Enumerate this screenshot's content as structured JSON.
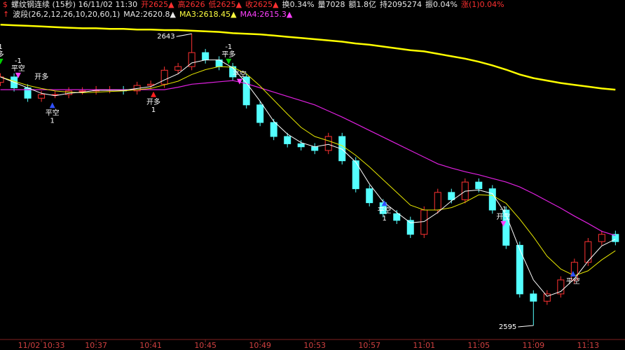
{
  "header": {
    "row1": [
      {
        "text": "$",
        "color": "#ff3030"
      },
      {
        "text": "螺纹钢连续 (15秒) 16/11/02 11:30",
        "color": "#e8e8e8"
      },
      {
        "text": "开2625▲",
        "color": "#ff3030"
      },
      {
        "text": "高2626",
        "color": "#ff3030"
      },
      {
        "text": "低2625▲",
        "color": "#ff3030"
      },
      {
        "text": "收2625▲",
        "color": "#ff3030"
      },
      {
        "text": "换0.34%",
        "color": "#e8e8e8"
      },
      {
        "text": "量7028",
        "color": "#e8e8e8"
      },
      {
        "text": "额1.8亿",
        "color": "#e8e8e8"
      },
      {
        "text": "持2095274",
        "color": "#e8e8e8"
      },
      {
        "text": "振0.04%",
        "color": "#e8e8e8"
      },
      {
        "text": "涨(1)0.04%",
        "color": "#ff3030"
      }
    ],
    "row2": [
      {
        "text": "↑",
        "color": "#ff3030"
      },
      {
        "text": "波段(26,2,12,26,10,20,60,1)",
        "color": "#e8e8e8"
      },
      {
        "text": "MA2:2620.8▲",
        "color": "#e8e8e8"
      },
      {
        "text": "MA3:2618.45▲",
        "color": "#ffff40"
      },
      {
        "text": "MA4:2615.3▲",
        "color": "#ff40ff"
      }
    ]
  },
  "chart_data": {
    "type": "candlestick",
    "up_color": "#ff3232",
    "down_color": "#54ffff",
    "xlim": [
      -3.03,
      42.7
    ],
    "ylim": [
      2592.7,
      2645.1
    ],
    "xticks": [
      {
        "value": 0,
        "label": "11/02 10:33"
      },
      {
        "value": 4,
        "label": "10:37"
      },
      {
        "value": 8,
        "label": "10:41"
      },
      {
        "value": 12,
        "label": "10:45"
      },
      {
        "value": 16,
        "label": "10:49"
      },
      {
        "value": 20,
        "label": "10:53"
      },
      {
        "value": 24,
        "label": "10:57"
      },
      {
        "value": 28,
        "label": "11:01"
      },
      {
        "value": 32,
        "label": "11:05"
      },
      {
        "value": 36,
        "label": "11:09"
      },
      {
        "value": 40,
        "label": "11:13"
      }
    ],
    "x": [
      -3,
      -2,
      -1,
      0,
      1,
      2,
      3,
      4,
      5,
      6,
      7,
      8,
      9,
      10,
      11,
      12,
      13,
      14,
      15,
      16,
      17,
      18,
      19,
      20,
      21,
      22,
      23,
      24,
      25,
      26,
      27,
      28,
      29,
      30,
      31,
      32,
      33,
      34,
      35,
      36,
      37,
      38,
      39,
      40,
      41,
      42
    ],
    "open": [
      2635,
      2635.9,
      2634.1,
      2632.4,
      2633,
      2633,
      2633.6,
      2633.6,
      2633.8,
      2633.8,
      2633.6,
      2634.5,
      2634.7,
      2637,
      2637.6,
      2639.9,
      2638.7,
      2637.6,
      2635.9,
      2631.3,
      2628.4,
      2626.1,
      2624.9,
      2624.4,
      2623.8,
      2626.1,
      2622.1,
      2617.5,
      2615.2,
      2613.4,
      2612.3,
      2610,
      2614,
      2616.9,
      2615.7,
      2618.6,
      2617.5,
      2614,
      2608.2,
      2600.2,
      2599,
      2600.2,
      2602.5,
      2605.4,
      2608.8,
      2610
    ],
    "high": [
      2636.5,
      2636.5,
      2634.7,
      2633.6,
      2633.6,
      2634.2,
      2634.2,
      2634.4,
      2634.4,
      2634.4,
      2635.1,
      2635.3,
      2637.6,
      2638.2,
      2643,
      2640.5,
      2639.3,
      2638.2,
      2636.5,
      2631.9,
      2629,
      2626.7,
      2625.5,
      2625,
      2626.7,
      2626.7,
      2622.7,
      2618.1,
      2615.8,
      2614,
      2612.9,
      2614.6,
      2617.5,
      2617.5,
      2619.2,
      2619.2,
      2618.1,
      2614.6,
      2608.8,
      2600.8,
      2600.8,
      2603.1,
      2606,
      2609.4,
      2610.6,
      2610.6
    ],
    "low": [
      2634.4,
      2633.5,
      2631.8,
      2631.8,
      2632.4,
      2632.4,
      2633,
      2633,
      2633.2,
      2633,
      2633,
      2633.9,
      2634.1,
      2636.4,
      2637,
      2638.1,
      2637,
      2635.3,
      2630.7,
      2627.8,
      2625.5,
      2624.3,
      2623.8,
      2623.2,
      2623.2,
      2621.5,
      2616.9,
      2614.6,
      2612.8,
      2611.7,
      2609.4,
      2609.4,
      2613.4,
      2615.1,
      2615.1,
      2616.9,
      2613.4,
      2607.6,
      2599.6,
      2595,
      2598.4,
      2599.6,
      2601.9,
      2604.8,
      2608.2,
      2608.2
    ],
    "close": [
      2635.9,
      2634.1,
      2632.4,
      2633,
      2633,
      2633.6,
      2633.6,
      2633.8,
      2633.8,
      2633.6,
      2634.5,
      2634.7,
      2637,
      2637.6,
      2639.9,
      2638.7,
      2637.6,
      2635.9,
      2631.3,
      2628.4,
      2626.1,
      2624.9,
      2624.4,
      2623.8,
      2626.1,
      2622.1,
      2617.5,
      2615.2,
      2613.4,
      2612.3,
      2610,
      2614,
      2616.9,
      2615.7,
      2618.6,
      2617.5,
      2614,
      2608.2,
      2600.2,
      2599,
      2600.2,
      2602.5,
      2605.4,
      2608.8,
      2610,
      2608.8
    ],
    "lines": [
      {
        "color": "#ffff00",
        "width": 2.5,
        "values": [
          2644.5,
          2644.4,
          2644.3,
          2644.2,
          2644.1,
          2644,
          2643.9,
          2643.9,
          2643.8,
          2643.8,
          2643.7,
          2643.7,
          2643.6,
          2643.6,
          2643.5,
          2643.4,
          2643.3,
          2643.1,
          2643,
          2642.9,
          2642.7,
          2642.5,
          2642.3,
          2642.1,
          2641.9,
          2641.7,
          2641.4,
          2641.2,
          2640.9,
          2640.6,
          2640.3,
          2640.1,
          2639.7,
          2639.3,
          2638.9,
          2638.4,
          2637.8,
          2637.1,
          2636.3,
          2635.7,
          2635.3,
          2634.9,
          2634.6,
          2634.3,
          2634,
          2633.8
        ]
      },
      {
        "color": "#e020e0",
        "width": 1.2,
        "values": [
          2633.8,
          2633.8,
          2633.8,
          2633.8,
          2633.8,
          2633.8,
          2633.8,
          2633.8,
          2633.8,
          2633.8,
          2633.8,
          2633.8,
          2633.8,
          2634.2,
          2634.7,
          2634.9,
          2635.1,
          2635.3,
          2634.8,
          2634.1,
          2633.4,
          2632.7,
          2632,
          2631.3,
          2630.3,
          2629.3,
          2628.2,
          2627.1,
          2626,
          2624.9,
          2623.8,
          2622.7,
          2621.6,
          2620.9,
          2620.3,
          2619.8,
          2619.2,
          2618.6,
          2617.8,
          2616.7,
          2615.5,
          2614.3,
          2613,
          2611.8,
          2610.5,
          2609.8
        ]
      },
      {
        "color": "#e8e800",
        "width": 1,
        "values": [
          2635.9,
          2635.2,
          2634.5,
          2634,
          2633.6,
          2633.4,
          2633.3,
          2633.4,
          2633.5,
          2633.6,
          2633.8,
          2634,
          2634.6,
          2635.2,
          2636.3,
          2637.1,
          2637.6,
          2637.5,
          2636.4,
          2634.4,
          2632.1,
          2629.8,
          2627.6,
          2626.1,
          2625.4,
          2624.6,
          2623,
          2621.1,
          2619,
          2616.9,
          2614.8,
          2614,
          2614,
          2614.4,
          2615.3,
          2616.5,
          2616.4,
          2615.1,
          2612.5,
          2609.6,
          2606.4,
          2604.3,
          2603.2,
          2604,
          2605.8,
          2607.3
        ]
      },
      {
        "color": "#ffffff",
        "width": 1,
        "values": [
          2635.9,
          2635,
          2634.1,
          2633.2,
          2632.8,
          2633.2,
          2633.4,
          2633.7,
          2633.7,
          2633.7,
          2634,
          2634.3,
          2635.4,
          2636.4,
          2638.2,
          2638.7,
          2638.7,
          2637.4,
          2634.9,
          2631.9,
          2628.6,
          2626.5,
          2625.1,
          2624.4,
          2624.8,
          2624,
          2621.9,
          2618.3,
          2615.4,
          2613.6,
          2611.9,
          2612.1,
          2613.6,
          2615.5,
          2617.1,
          2617.3,
          2616.7,
          2613.2,
          2607.5,
          2602.5,
          2599.8,
          2600.6,
          2602.7,
          2605.6,
          2608.1,
          2609.2
        ]
      }
    ],
    "extremes": [
      {
        "x": 11,
        "value": 2643
      },
      {
        "x": 36,
        "value": 2595
      }
    ],
    "signals": [
      {
        "x": -3,
        "y": 2638.2,
        "arrow": "down",
        "color": "#00d000",
        "lines": [
          1,
          "多"
        ]
      },
      {
        "x": -1.7,
        "y": 2635.9,
        "arrow": "down",
        "color": "#ff40ff",
        "lines": [
          -1,
          "平空"
        ]
      },
      {
        "x": -0.4,
        "y": 2635.9,
        "lines": [
          "开多"
        ]
      },
      {
        "x": 0.8,
        "y": 2631.0,
        "arrow": "up",
        "color": "#3050ff",
        "lines": [
          "平空",
          1
        ]
      },
      {
        "x": 8.2,
        "y": 2632.8,
        "arrow": "up",
        "color": "#ff2020",
        "lines": [
          "开多",
          1
        ]
      },
      {
        "x": 13.7,
        "y": 2638.2,
        "arrow": "down",
        "color": "#00d000",
        "lines": [
          -1,
          "平多"
        ]
      },
      {
        "x": 14.5,
        "y": 2634.9,
        "arrow": "down",
        "color": "#ff40ff",
        "lines": [
          "平空"
        ]
      },
      {
        "x": 25.1,
        "y": 2614.9,
        "arrow": "up",
        "color": "#3050ff",
        "lines": [
          "平空",
          1
        ]
      },
      {
        "x": 33.8,
        "y": 2611.5,
        "arrow": "down",
        "color": "#ff40ff",
        "lines": [
          -1,
          "开空"
        ]
      },
      {
        "x": 38.9,
        "y": 2603.3,
        "arrow": "up",
        "color": "#3050ff",
        "lines": [
          "平空"
        ]
      }
    ]
  }
}
